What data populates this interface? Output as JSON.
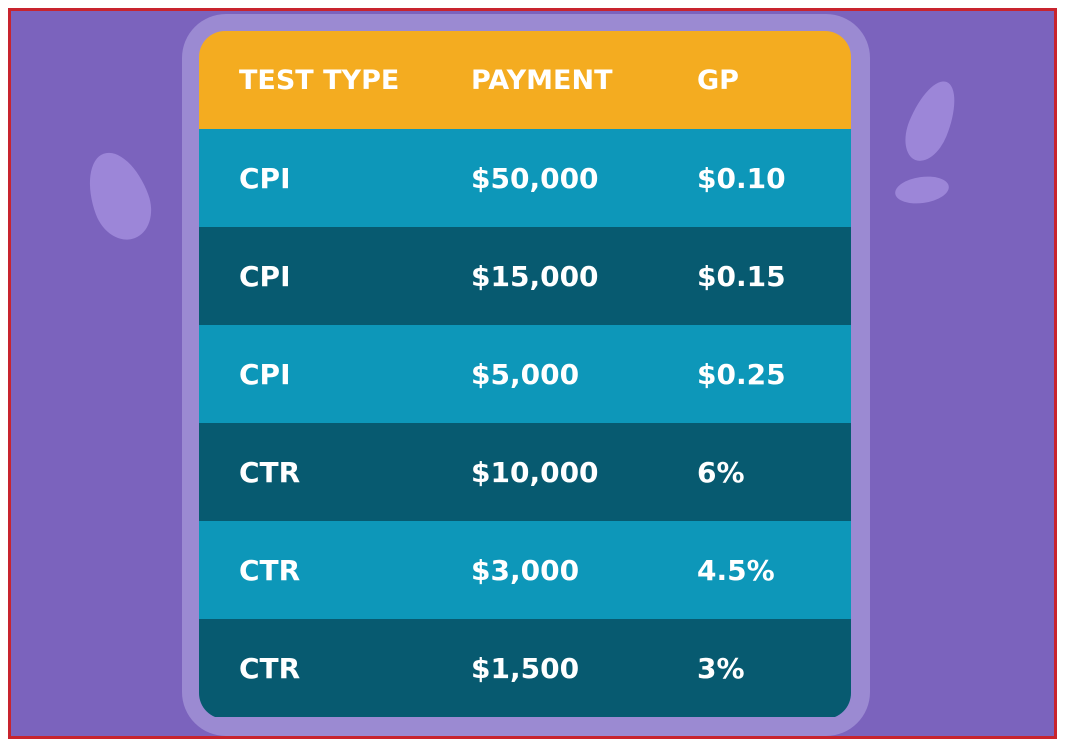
{
  "table": {
    "headers": [
      "TEST TYPE",
      "PAYMENT",
      "GP"
    ],
    "rows": [
      [
        "CPI",
        "$50,000",
        "$0.10"
      ],
      [
        "CPI",
        "$15,000",
        "$0.15"
      ],
      [
        "CPI",
        "$5,000",
        "$0.25"
      ],
      [
        "CTR",
        "$10,000",
        "6%"
      ],
      [
        "CTR",
        "$3,000",
        "4.5%"
      ],
      [
        "CTR",
        "$1,500",
        "3%"
      ]
    ]
  },
  "colors": {
    "background": "#7b63bd",
    "header": "#f4ac20",
    "row_light": "#0d97b9",
    "row_dark": "#075a70",
    "border": "#c8242e"
  }
}
